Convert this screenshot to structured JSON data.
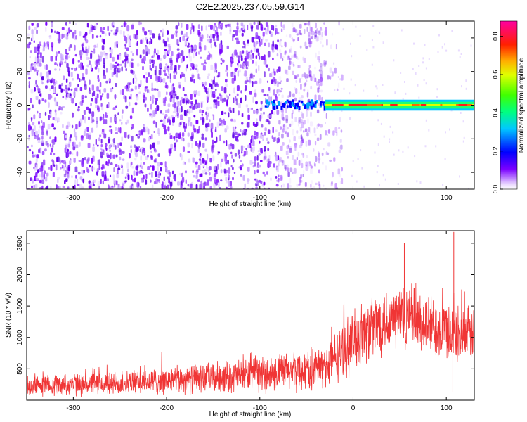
{
  "title": "C2E2.2025.237.05.59.G14",
  "chart_data": [
    {
      "type": "heatmap",
      "title": "C2E2.2025.237.05.59.G14",
      "xlabel": "Height of straight line (km)",
      "ylabel": "Frequency (Hz)",
      "xlim": [
        -350,
        130
      ],
      "ylim": [
        -50,
        50
      ],
      "xticks": [
        -300,
        -200,
        -100,
        0,
        100
      ],
      "xtick_labels": [
        "-300",
        "-200",
        "-100",
        "0",
        "100"
      ],
      "yticks": [
        -40,
        -20,
        0,
        20,
        40
      ],
      "ytick_labels": [
        "-40",
        "-20",
        "0",
        "20",
        "40"
      ],
      "noise_cutoff_km": -35,
      "signal_band": {
        "center_hz": 0,
        "half_width_hz": 2.5,
        "start_km": -95,
        "peak_start_km": -30
      },
      "colorbar": {
        "label": "Normalized spectral amplitude",
        "range": [
          0.0,
          0.88
        ],
        "ticks": [
          0.0,
          0.2,
          0.4,
          0.6,
          0.8
        ],
        "tick_labels": [
          "0.0",
          "0.2",
          "0.4",
          "0.6",
          "0.8"
        ]
      }
    },
    {
      "type": "line",
      "xlabel": "Height of straight line (km)",
      "ylabel": "SNR (10 * v/v)",
      "xlim": [
        -350,
        130
      ],
      "ylim": [
        0,
        2700
      ],
      "xticks": [
        -300,
        -200,
        -100,
        0,
        100
      ],
      "xtick_labels": [
        "-300",
        "-200",
        "-100",
        "0",
        "100"
      ],
      "yticks": [
        500,
        1000,
        1500,
        2000,
        2500
      ],
      "ytick_labels": [
        "500",
        "1000",
        "1500",
        "2000",
        "2500"
      ],
      "series": [
        {
          "name": "SNR",
          "color": "#f03535",
          "x": [
            -350,
            -300,
            -250,
            -200,
            -150,
            -100,
            -60,
            -30,
            -10,
            10,
            30,
            50,
            70,
            90,
            110,
            130
          ],
          "mean": [
            230,
            250,
            270,
            310,
            360,
            410,
            470,
            540,
            800,
            1050,
            1250,
            1350,
            1250,
            1150,
            1050,
            1050
          ],
          "spread": [
            150,
            160,
            170,
            190,
            220,
            250,
            280,
            320,
            400,
            450,
            480,
            500,
            470,
            430,
            400,
            380
          ]
        }
      ],
      "spikes": [
        {
          "x": 55,
          "y": 2500
        },
        {
          "x": 108,
          "y": 2680
        },
        {
          "x": 107,
          "y": 120
        }
      ]
    }
  ]
}
